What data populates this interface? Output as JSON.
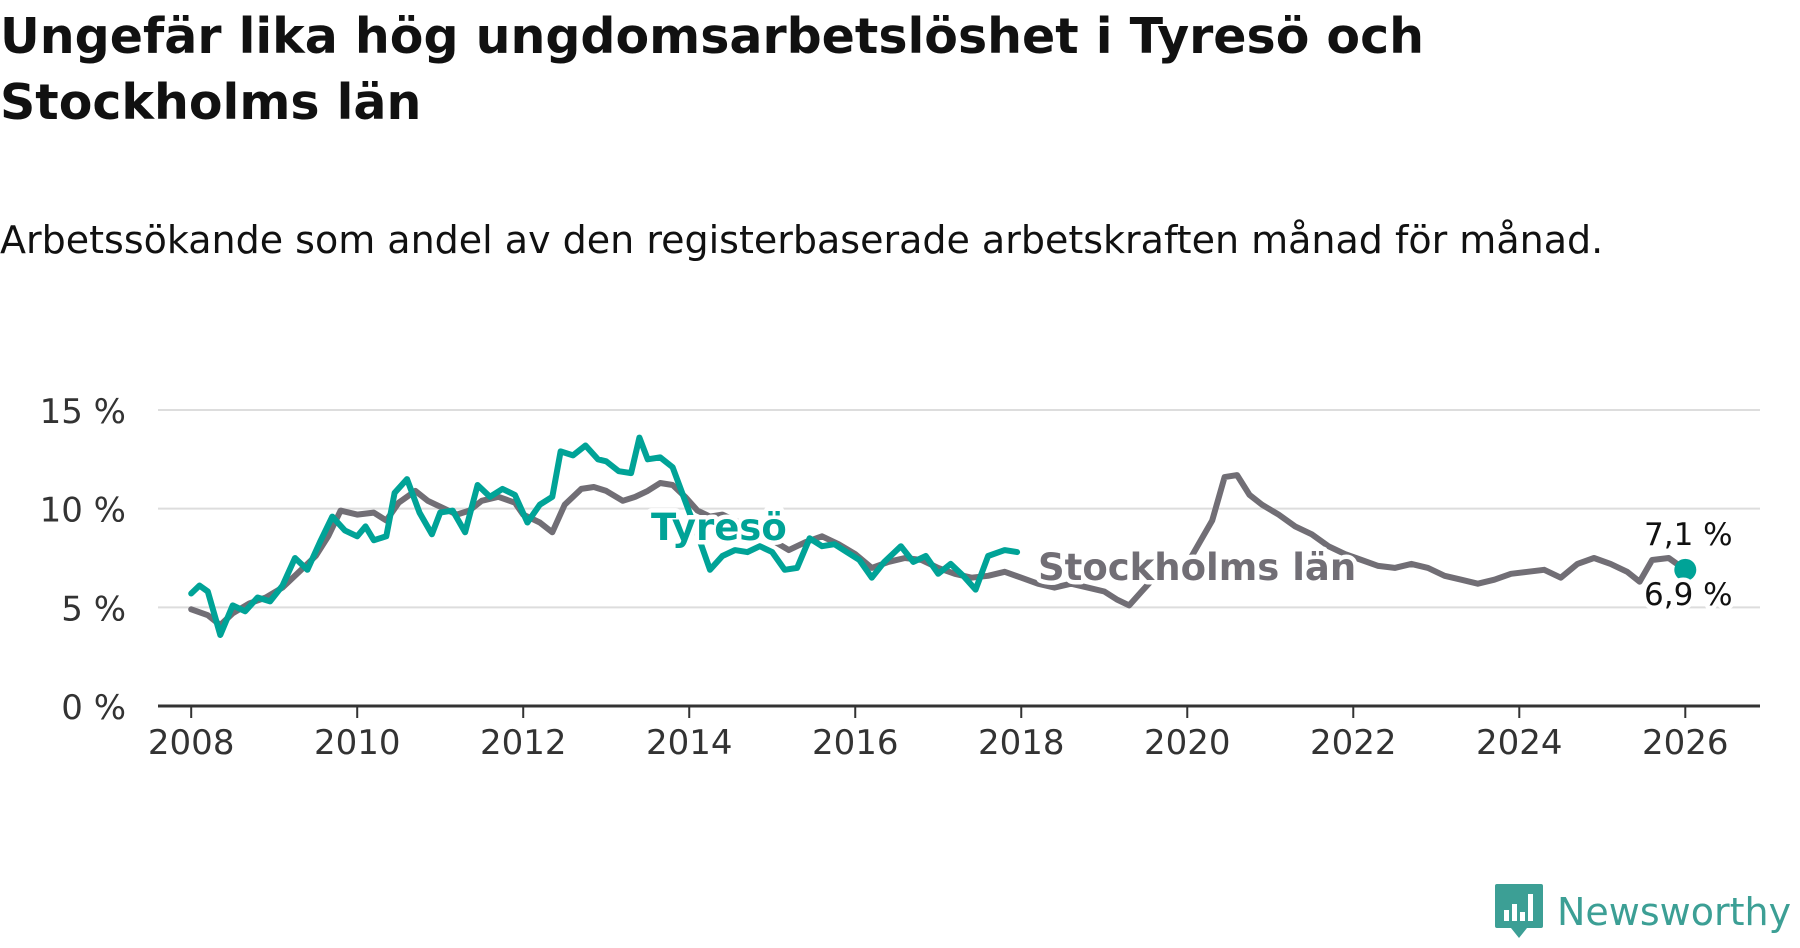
{
  "title": "Ungefär lika hög ungdomsarbetslöshet i Tyresö och Stockholms län",
  "subtitle": "Arbetssökande som andel av den registerbaserade arbetskraften månad för månad.",
  "brand": "Newsworthy",
  "colors": {
    "tyreso": "#00a397",
    "stockholm": "#716e75",
    "grid": "#dddddd",
    "axis": "#333333",
    "text": "#333333"
  },
  "chart_data": {
    "type": "line",
    "title": "Ungefär lika hög ungdomsarbetslöshet i Tyresö och Stockholms län",
    "xlabel": "",
    "ylabel": "",
    "ylim": [
      0,
      15
    ],
    "xlim": [
      2007.6,
      2026.9
    ],
    "x_ticks": [
      2008,
      2010,
      2012,
      2014,
      2016,
      2018,
      2020,
      2022,
      2024,
      2026
    ],
    "y_ticks": [
      0,
      5,
      10,
      15
    ],
    "y_tick_labels": [
      "0 %",
      "5 %",
      "10 %",
      "15 %"
    ],
    "grid": true,
    "series": [
      {
        "name": "Stockholms län",
        "label": "Stockholms län",
        "color": "#716e75",
        "end_label": "6,9 %",
        "points": [
          [
            2008.0,
            4.9
          ],
          [
            2008.2,
            4.6
          ],
          [
            2008.35,
            4.1
          ],
          [
            2008.5,
            4.7
          ],
          [
            2008.7,
            5.2
          ],
          [
            2008.9,
            5.5
          ],
          [
            2009.1,
            6.0
          ],
          [
            2009.3,
            6.8
          ],
          [
            2009.5,
            7.6
          ],
          [
            2009.65,
            8.6
          ],
          [
            2009.8,
            9.9
          ],
          [
            2010.0,
            9.7
          ],
          [
            2010.2,
            9.8
          ],
          [
            2010.35,
            9.4
          ],
          [
            2010.5,
            10.3
          ],
          [
            2010.7,
            10.9
          ],
          [
            2010.85,
            10.4
          ],
          [
            2011.0,
            10.1
          ],
          [
            2011.2,
            9.7
          ],
          [
            2011.35,
            9.9
          ],
          [
            2011.5,
            10.4
          ],
          [
            2011.7,
            10.6
          ],
          [
            2011.9,
            10.3
          ],
          [
            2012.0,
            9.7
          ],
          [
            2012.2,
            9.3
          ],
          [
            2012.35,
            8.8
          ],
          [
            2012.5,
            10.2
          ],
          [
            2012.7,
            11.0
          ],
          [
            2012.85,
            11.1
          ],
          [
            2013.0,
            10.9
          ],
          [
            2013.2,
            10.4
          ],
          [
            2013.35,
            10.6
          ],
          [
            2013.5,
            10.9
          ],
          [
            2013.65,
            11.3
          ],
          [
            2013.8,
            11.2
          ],
          [
            2013.95,
            10.6
          ],
          [
            2014.1,
            9.9
          ],
          [
            2014.25,
            9.6
          ],
          [
            2014.4,
            9.7
          ],
          [
            2014.6,
            9.3
          ],
          [
            2014.8,
            9.0
          ],
          [
            2015.0,
            8.4
          ],
          [
            2015.2,
            7.9
          ],
          [
            2015.4,
            8.3
          ],
          [
            2015.6,
            8.6
          ],
          [
            2015.8,
            8.2
          ],
          [
            2016.0,
            7.7
          ],
          [
            2016.2,
            7.0
          ],
          [
            2016.4,
            7.3
          ],
          [
            2016.6,
            7.5
          ],
          [
            2016.8,
            7.4
          ],
          [
            2017.0,
            7.0
          ],
          [
            2017.2,
            6.7
          ],
          [
            2017.4,
            6.5
          ],
          [
            2017.6,
            6.6
          ],
          [
            2017.8,
            6.8
          ],
          [
            2018.0,
            6.5
          ],
          [
            2018.2,
            6.2
          ],
          [
            2018.4,
            6.0
          ],
          [
            2018.6,
            6.2
          ],
          [
            2018.8,
            6.0
          ],
          [
            2019.0,
            5.8
          ],
          [
            2019.15,
            5.4
          ],
          [
            2019.3,
            5.1
          ],
          [
            2019.45,
            5.8
          ],
          [
            2019.6,
            6.5
          ],
          [
            2019.8,
            7.0
          ],
          [
            2020.0,
            7.2
          ],
          [
            2020.15,
            8.3
          ],
          [
            2020.3,
            9.4
          ],
          [
            2020.45,
            11.6
          ],
          [
            2020.6,
            11.7
          ],
          [
            2020.75,
            10.7
          ],
          [
            2020.9,
            10.2
          ],
          [
            2021.1,
            9.7
          ],
          [
            2021.3,
            9.1
          ],
          [
            2021.5,
            8.7
          ],
          [
            2021.7,
            8.1
          ],
          [
            2021.9,
            7.7
          ],
          [
            2022.1,
            7.4
          ],
          [
            2022.3,
            7.1
          ],
          [
            2022.5,
            7.0
          ],
          [
            2022.7,
            7.2
          ],
          [
            2022.9,
            7.0
          ],
          [
            2023.1,
            6.6
          ],
          [
            2023.3,
            6.4
          ],
          [
            2023.5,
            6.2
          ],
          [
            2023.7,
            6.4
          ],
          [
            2023.9,
            6.7
          ],
          [
            2024.1,
            6.8
          ],
          [
            2024.3,
            6.9
          ],
          [
            2024.5,
            6.5
          ],
          [
            2024.7,
            7.2
          ],
          [
            2024.9,
            7.5
          ],
          [
            2025.1,
            7.2
          ],
          [
            2025.3,
            6.8
          ],
          [
            2025.45,
            6.3
          ],
          [
            2025.6,
            7.4
          ],
          [
            2025.8,
            7.5
          ],
          [
            2026.0,
            6.9
          ]
        ]
      },
      {
        "name": "Tyresö",
        "label": "Tyresö",
        "color": "#00a397",
        "end_label": "7,1 %",
        "points": [
          [
            2008.0,
            5.7
          ],
          [
            2008.1,
            6.1
          ],
          [
            2008.2,
            5.8
          ],
          [
            2008.35,
            3.6
          ],
          [
            2008.5,
            5.1
          ],
          [
            2008.65,
            4.8
          ],
          [
            2008.8,
            5.5
          ],
          [
            2008.95,
            5.3
          ],
          [
            2009.1,
            6.1
          ],
          [
            2009.25,
            7.5
          ],
          [
            2009.4,
            6.9
          ],
          [
            2009.55,
            8.3
          ],
          [
            2009.7,
            9.6
          ],
          [
            2009.85,
            8.9
          ],
          [
            2010.0,
            8.6
          ],
          [
            2010.1,
            9.1
          ],
          [
            2010.2,
            8.4
          ],
          [
            2010.35,
            8.6
          ],
          [
            2010.45,
            10.8
          ],
          [
            2010.6,
            11.5
          ],
          [
            2010.75,
            9.8
          ],
          [
            2010.9,
            8.7
          ],
          [
            2011.0,
            9.8
          ],
          [
            2011.15,
            9.9
          ],
          [
            2011.3,
            8.8
          ],
          [
            2011.45,
            11.2
          ],
          [
            2011.6,
            10.6
          ],
          [
            2011.75,
            11.0
          ],
          [
            2011.9,
            10.7
          ],
          [
            2012.05,
            9.3
          ],
          [
            2012.2,
            10.2
          ],
          [
            2012.35,
            10.6
          ],
          [
            2012.45,
            12.9
          ],
          [
            2012.6,
            12.7
          ],
          [
            2012.75,
            13.2
          ],
          [
            2012.9,
            12.5
          ],
          [
            2013.0,
            12.4
          ],
          [
            2013.15,
            11.9
          ],
          [
            2013.3,
            11.8
          ],
          [
            2013.4,
            13.6
          ],
          [
            2013.5,
            12.5
          ],
          [
            2013.65,
            12.6
          ],
          [
            2013.8,
            12.1
          ],
          [
            2013.95,
            10.4
          ],
          [
            2014.1,
            8.7
          ],
          [
            2014.25,
            6.9
          ],
          [
            2014.4,
            7.6
          ],
          [
            2014.55,
            7.9
          ],
          [
            2014.7,
            7.8
          ],
          [
            2014.85,
            8.1
          ],
          [
            2015.0,
            7.8
          ],
          [
            2015.15,
            6.9
          ],
          [
            2015.3,
            7.0
          ],
          [
            2015.45,
            8.5
          ],
          [
            2015.6,
            8.1
          ],
          [
            2015.75,
            8.2
          ],
          [
            2015.9,
            7.8
          ],
          [
            2016.05,
            7.4
          ],
          [
            2016.2,
            6.5
          ],
          [
            2016.35,
            7.3
          ],
          [
            2016.55,
            8.1
          ],
          [
            2016.7,
            7.3
          ],
          [
            2016.85,
            7.6
          ],
          [
            2017.0,
            6.7
          ],
          [
            2017.15,
            7.2
          ],
          [
            2017.3,
            6.6
          ],
          [
            2017.45,
            5.9
          ],
          [
            2017.6,
            7.6
          ],
          [
            2017.8,
            7.9
          ],
          [
            2017.95,
            7.8
          ]
        ]
      }
    ],
    "gaps_note": ""
  }
}
